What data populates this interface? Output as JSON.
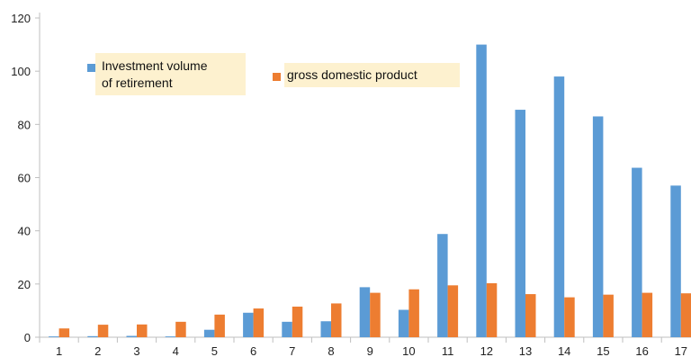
{
  "chart_data": {
    "type": "bar",
    "title": "",
    "xlabel": "",
    "ylabel": "",
    "categories": [
      "1",
      "2",
      "3",
      "4",
      "5",
      "6",
      "7",
      "8",
      "9",
      "10",
      "11",
      "12",
      "13",
      "14",
      "15",
      "16",
      "17"
    ],
    "series": [
      {
        "name": "Investment volume of retirement",
        "color": "#5b9bd5",
        "values": [
          0.3,
          0.4,
          0.5,
          0.3,
          2.8,
          9.2,
          5.8,
          6.0,
          18.8,
          10.3,
          38.8,
          110.0,
          85.5,
          98.0,
          83.0,
          63.7,
          57.0
        ]
      },
      {
        "name": "gross domestic product",
        "color": "#ed7d31",
        "values": [
          3.3,
          4.7,
          4.8,
          5.8,
          8.5,
          10.8,
          11.5,
          12.7,
          16.7,
          18.0,
          19.5,
          20.3,
          16.2,
          15.0,
          16.0,
          16.7,
          16.5
        ]
      }
    ],
    "yticks": [
      0,
      20,
      40,
      60,
      80,
      100,
      120
    ],
    "ylim": [
      0,
      120
    ],
    "grid": false,
    "legend": {
      "placement": "top-left inside plot, two separate highlighted boxes",
      "entries": [
        {
          "label_lines": [
            "Investment volume",
            "of retirement"
          ]
        },
        {
          "label_lines": [
            "gross domestic product"
          ]
        }
      ]
    }
  }
}
